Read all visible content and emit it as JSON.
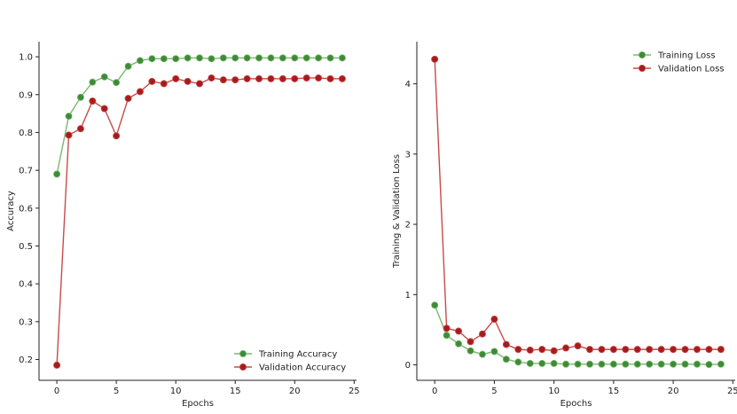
{
  "chart_data": [
    {
      "type": "line",
      "xlabel": "Epochs",
      "ylabel": "Accuracy",
      "xlim": [
        -1.5,
        25.2
      ],
      "ylim": [
        0.145,
        1.04
      ],
      "xticks": [
        0,
        5,
        10,
        15,
        20,
        25
      ],
      "yticks": [
        0.2,
        0.3,
        0.4,
        0.5,
        0.6,
        0.7,
        0.8,
        0.9,
        1.0
      ],
      "ytick_labels": [
        "0.2",
        "0.3",
        "0.4",
        "0.5",
        "0.6",
        "0.7",
        "0.8",
        "0.9",
        "1.0"
      ],
      "grid": false,
      "legend_position": "lower-right",
      "x": [
        0,
        1,
        2,
        3,
        4,
        5,
        6,
        7,
        8,
        9,
        10,
        11,
        12,
        13,
        14,
        15,
        16,
        17,
        18,
        19,
        20,
        21,
        22,
        23,
        24
      ],
      "series": [
        {
          "name": "Training Accuracy",
          "color": "#7ab870",
          "marker_color": "#3f8a36",
          "values": [
            0.69,
            0.843,
            0.893,
            0.933,
            0.947,
            0.932,
            0.975,
            0.99,
            0.995,
            0.995,
            0.995,
            0.997,
            0.997,
            0.995,
            0.997,
            0.997,
            0.997,
            0.997,
            0.997,
            0.997,
            0.997,
            0.997,
            0.997,
            0.997,
            0.997
          ]
        },
        {
          "name": "Validation Accuracy",
          "color": "#c94a4a",
          "marker_color": "#a61c1c",
          "values": [
            0.185,
            0.793,
            0.81,
            0.883,
            0.863,
            0.791,
            0.89,
            0.908,
            0.935,
            0.929,
            0.942,
            0.935,
            0.929,
            0.944,
            0.939,
            0.939,
            0.942,
            0.942,
            0.942,
            0.942,
            0.942,
            0.944,
            0.944,
            0.942,
            0.942
          ]
        }
      ]
    },
    {
      "type": "line",
      "xlabel": "Epochs",
      "ylabel": "Training & Validation Loss",
      "xlim": [
        -1.5,
        25.2
      ],
      "ylim": [
        -0.22,
        4.6
      ],
      "xticks": [
        0,
        5,
        10,
        15,
        20,
        25
      ],
      "yticks": [
        0,
        1,
        2,
        3,
        4
      ],
      "ytick_labels": [
        "0",
        "1",
        "2",
        "3",
        "4"
      ],
      "grid": false,
      "legend_position": "upper-right",
      "x": [
        0,
        1,
        2,
        3,
        4,
        5,
        6,
        7,
        8,
        9,
        10,
        11,
        12,
        13,
        14,
        15,
        16,
        17,
        18,
        19,
        20,
        21,
        22,
        23,
        24
      ],
      "series": [
        {
          "name": "Training Loss",
          "color": "#7ab870",
          "marker_color": "#3f8a36",
          "values": [
            0.85,
            0.42,
            0.3,
            0.2,
            0.15,
            0.19,
            0.08,
            0.04,
            0.02,
            0.02,
            0.02,
            0.01,
            0.01,
            0.01,
            0.01,
            0.01,
            0.01,
            0.01,
            0.01,
            0.01,
            0.01,
            0.01,
            0.01,
            0.005,
            0.01
          ]
        },
        {
          "name": "Validation Loss",
          "color": "#c94a4a",
          "marker_color": "#a61c1c",
          "values": [
            4.35,
            0.52,
            0.48,
            0.33,
            0.44,
            0.65,
            0.29,
            0.22,
            0.21,
            0.22,
            0.2,
            0.24,
            0.27,
            0.22,
            0.22,
            0.22,
            0.22,
            0.22,
            0.22,
            0.22,
            0.22,
            0.22,
            0.22,
            0.22,
            0.22
          ]
        }
      ]
    }
  ]
}
